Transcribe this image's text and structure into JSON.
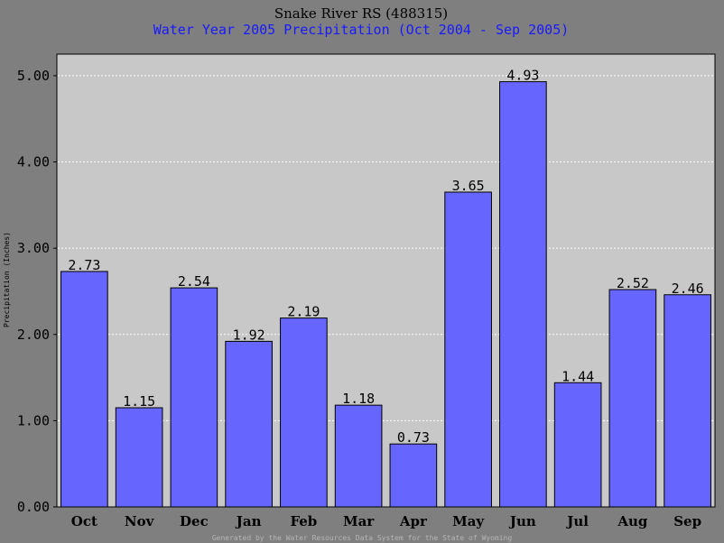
{
  "chart_data": {
    "type": "bar",
    "title": "Snake River RS (488315)",
    "subtitle": "Water Year 2005 Precipitation (Oct 2004 - Sep 2005)",
    "xlabel": "",
    "ylabel": "Precipitation (Inches)",
    "categories": [
      "Oct",
      "Nov",
      "Dec",
      "Jan",
      "Feb",
      "Mar",
      "Apr",
      "May",
      "Jun",
      "Jul",
      "Aug",
      "Sep"
    ],
    "values": [
      2.73,
      1.15,
      2.54,
      1.92,
      2.19,
      1.18,
      0.73,
      3.65,
      4.93,
      1.44,
      2.52,
      2.46
    ],
    "data_labels": [
      "2.73",
      "1.15",
      "2.54",
      "1.92",
      "2.19",
      "1.18",
      "0.73",
      "3.65",
      "4.93",
      "1.44",
      "2.52",
      "2.46"
    ],
    "yticks": [
      0,
      1,
      2,
      3,
      4,
      5
    ],
    "ytick_labels": [
      "0.00",
      "1.00",
      "2.00",
      "3.00",
      "4.00",
      "5.00"
    ],
    "ylim": [
      0,
      5.25
    ],
    "grid": true,
    "legend": "none",
    "footer": "Generated by the Water Resources Data System for the State of Wyoming",
    "colors": {
      "background": "#7f7f7f",
      "plot_area": "#c8c8c8",
      "bar_fill": "#6666ff",
      "bar_edge": "#000000",
      "grid": "#ffffff",
      "title": "#000000",
      "subtitle": "#1a1aff",
      "footer": "#b5b5b5"
    }
  }
}
